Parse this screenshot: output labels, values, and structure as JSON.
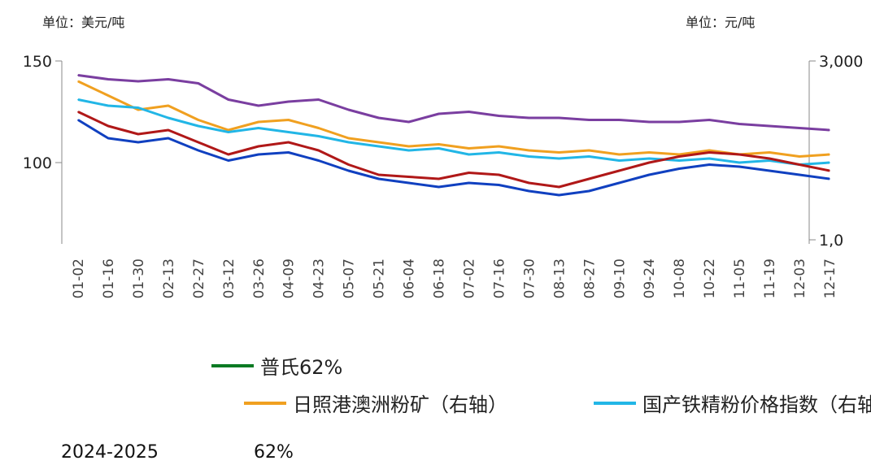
{
  "units": {
    "left": "单位：美元/吨",
    "right": "单位：元/吨"
  },
  "colors": {
    "plocan62": "#0a7a23",
    "series_purple": "#7a3ea0",
    "series_orange": "#f0a020",
    "series_cyan": "#22b6e6",
    "series_red": "#b01818",
    "series_blue": "#1040c0"
  },
  "legend": [
    {
      "label": "普氏62%",
      "color": "#0a7a23"
    },
    {
      "label": "日照港澳洲粉矿（右轴）",
      "color": "#f0a020"
    },
    {
      "label": "国产铁精粉价格指数（右轴）",
      "color": "#22b6e6"
    }
  ],
  "footer": {
    "period": "2024-2025",
    "pct": "62%"
  },
  "chart_data": {
    "type": "line",
    "y_left_ticks": [
      "150",
      "100"
    ],
    "y_right_ticks": [
      "3,000",
      "1,0"
    ],
    "y_left_range": [
      60,
      150
    ],
    "x_labels": [
      "01-02",
      "01-16",
      "01-30",
      "02-13",
      "02-27",
      "03-12",
      "03-26",
      "04-09",
      "04-23",
      "05-07",
      "05-21",
      "06-04",
      "06-18",
      "07-02",
      "07-16",
      "07-30",
      "08-13",
      "08-27",
      "09-10",
      "09-24",
      "10-08",
      "10-22",
      "11-05",
      "11-19",
      "12-03",
      "12-17"
    ],
    "series": [
      {
        "name": "",
        "color": "#7a3ea0",
        "values": [
          143,
          141,
          140,
          141,
          139,
          131,
          128,
          130,
          131,
          126,
          122,
          120,
          124,
          125,
          123,
          122,
          122,
          121,
          121,
          120,
          120,
          121,
          119,
          118,
          117,
          116
        ]
      },
      {
        "name": "",
        "color": "#f0a020",
        "values": [
          140,
          133,
          126,
          128,
          121,
          116,
          120,
          121,
          117,
          112,
          110,
          108,
          109,
          107,
          108,
          106,
          105,
          106,
          104,
          105,
          104,
          106,
          104,
          105,
          103,
          104
        ]
      },
      {
        "name": "",
        "color": "#22b6e6",
        "values": [
          131,
          128,
          127,
          122,
          118,
          115,
          117,
          115,
          113,
          110,
          108,
          106,
          107,
          104,
          105,
          103,
          102,
          103,
          101,
          102,
          101,
          102,
          100,
          101,
          99,
          100
        ]
      },
      {
        "name": "",
        "color": "#b01818",
        "values": [
          125,
          118,
          114,
          116,
          110,
          104,
          108,
          110,
          106,
          99,
          94,
          93,
          92,
          95,
          94,
          90,
          88,
          92,
          96,
          100,
          103,
          105,
          104,
          102,
          99,
          96
        ]
      },
      {
        "name": "",
        "color": "#1040c0",
        "values": [
          121,
          112,
          110,
          112,
          106,
          101,
          104,
          105,
          101,
          96,
          92,
          90,
          88,
          90,
          89,
          86,
          84,
          86,
          90,
          94,
          97,
          99,
          98,
          96,
          94,
          92
        ]
      }
    ]
  }
}
